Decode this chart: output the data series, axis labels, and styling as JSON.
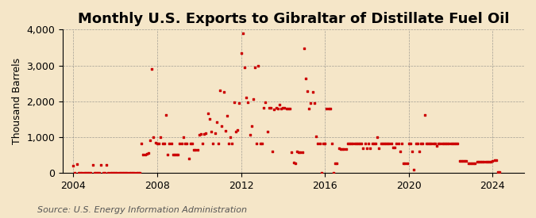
{
  "title": "Monthly U.S. Exports to Gibraltar of Distillate Fuel Oil",
  "ylabel": "Thousand Barrels",
  "source": "Source: U.S. Energy Information Administration",
  "xlim": [
    2003.5,
    2025.5
  ],
  "ylim": [
    0,
    4000
  ],
  "yticks": [
    0,
    1000,
    2000,
    3000,
    4000
  ],
  "ytick_labels": [
    "0",
    "1,000",
    "2,000",
    "3,000",
    "4,000"
  ],
  "xticks": [
    2004,
    2008,
    2012,
    2016,
    2020,
    2024
  ],
  "marker_color": "#cc0000",
  "marker_size": 4,
  "background_color": "#f5e6c8",
  "title_fontsize": 13,
  "axis_fontsize": 9,
  "source_fontsize": 8,
  "data_x": [
    2004.0,
    2004.08,
    2004.17,
    2004.25,
    2004.33,
    2004.42,
    2004.5,
    2004.58,
    2004.67,
    2004.75,
    2004.83,
    2004.92,
    2005.0,
    2005.08,
    2005.17,
    2005.25,
    2005.33,
    2005.42,
    2005.5,
    2005.58,
    2005.67,
    2005.75,
    2005.83,
    2005.92,
    2006.0,
    2006.08,
    2006.17,
    2006.25,
    2006.33,
    2006.42,
    2006.5,
    2006.58,
    2006.67,
    2006.75,
    2006.83,
    2006.92,
    2007.0,
    2007.08,
    2007.17,
    2007.25,
    2007.33,
    2007.42,
    2007.5,
    2007.58,
    2007.67,
    2007.75,
    2007.83,
    2007.92,
    2008.0,
    2008.08,
    2008.17,
    2008.25,
    2008.33,
    2008.42,
    2008.5,
    2008.58,
    2008.67,
    2008.75,
    2008.83,
    2008.92,
    2009.0,
    2009.08,
    2009.17,
    2009.25,
    2009.33,
    2009.42,
    2009.5,
    2009.58,
    2009.67,
    2009.75,
    2009.83,
    2009.92,
    2010.0,
    2010.08,
    2010.17,
    2010.25,
    2010.33,
    2010.42,
    2010.5,
    2010.58,
    2010.67,
    2010.75,
    2010.83,
    2010.92,
    2011.0,
    2011.08,
    2011.17,
    2011.25,
    2011.33,
    2011.42,
    2011.5,
    2011.58,
    2011.67,
    2011.75,
    2011.83,
    2011.92,
    2012.0,
    2012.08,
    2012.17,
    2012.25,
    2012.33,
    2012.42,
    2012.5,
    2012.58,
    2012.67,
    2012.75,
    2012.83,
    2012.92,
    2013.0,
    2013.08,
    2013.17,
    2013.25,
    2013.33,
    2013.42,
    2013.5,
    2013.58,
    2013.67,
    2013.75,
    2013.83,
    2013.92,
    2014.0,
    2014.08,
    2014.17,
    2014.25,
    2014.33,
    2014.42,
    2014.5,
    2014.58,
    2014.67,
    2014.75,
    2014.83,
    2014.92,
    2015.0,
    2015.08,
    2015.17,
    2015.25,
    2015.33,
    2015.42,
    2015.5,
    2015.58,
    2015.67,
    2015.75,
    2015.83,
    2015.92,
    2016.0,
    2016.08,
    2016.17,
    2016.25,
    2016.33,
    2016.42,
    2016.5,
    2016.58,
    2016.67,
    2016.75,
    2016.83,
    2016.92,
    2017.0,
    2017.08,
    2017.17,
    2017.25,
    2017.33,
    2017.42,
    2017.5,
    2017.58,
    2017.67,
    2017.75,
    2017.83,
    2017.92,
    2018.0,
    2018.08,
    2018.17,
    2018.25,
    2018.33,
    2018.42,
    2018.5,
    2018.58,
    2018.67,
    2018.75,
    2018.83,
    2018.92,
    2019.0,
    2019.08,
    2019.17,
    2019.25,
    2019.33,
    2019.42,
    2019.5,
    2019.58,
    2019.67,
    2019.75,
    2019.83,
    2019.92,
    2020.0,
    2020.08,
    2020.17,
    2020.25,
    2020.33,
    2020.42,
    2020.5,
    2020.58,
    2020.67,
    2020.75,
    2020.83,
    2020.92,
    2021.0,
    2021.08,
    2021.17,
    2021.25,
    2021.33,
    2021.42,
    2021.5,
    2021.58,
    2021.67,
    2021.75,
    2021.83,
    2021.92,
    2022.0,
    2022.08,
    2022.17,
    2022.25,
    2022.33,
    2022.42,
    2022.5,
    2022.58,
    2022.67,
    2022.75,
    2022.83,
    2022.92,
    2023.0,
    2023.08,
    2023.17,
    2023.25,
    2023.33,
    2023.42,
    2023.5,
    2023.58,
    2023.67,
    2023.75,
    2023.83,
    2023.92,
    2024.0,
    2024.08,
    2024.17,
    2024.25,
    2024.33
  ],
  "data_y": [
    200,
    0,
    240,
    0,
    0,
    0,
    0,
    0,
    0,
    0,
    0,
    230,
    0,
    0,
    0,
    0,
    230,
    0,
    0,
    220,
    0,
    0,
    0,
    0,
    0,
    0,
    0,
    0,
    0,
    0,
    0,
    0,
    0,
    0,
    0,
    0,
    0,
    0,
    0,
    820,
    500,
    500,
    540,
    550,
    900,
    2900,
    1000,
    840,
    820,
    820,
    1000,
    830,
    820,
    1620,
    500,
    820,
    830,
    500,
    500,
    500,
    500,
    820,
    820,
    1000,
    820,
    820,
    400,
    820,
    820,
    650,
    650,
    650,
    1070,
    1080,
    820,
    1080,
    1100,
    1650,
    1500,
    1150,
    820,
    1100,
    1420,
    820,
    2300,
    1300,
    2250,
    1180,
    1600,
    820,
    1000,
    820,
    1980,
    1150,
    1200,
    1940,
    3350,
    3900,
    2950,
    2100,
    1980,
    1070,
    1300,
    2050,
    2950,
    820,
    3000,
    820,
    820,
    1820,
    1980,
    1150,
    1820,
    1820,
    600,
    1780,
    1820,
    1800,
    1900,
    1800,
    1820,
    1820,
    1800,
    1800,
    1800,
    580,
    280,
    270,
    600,
    570,
    570,
    570,
    3480,
    2630,
    2270,
    1800,
    1950,
    2250,
    1950,
    1020,
    820,
    820,
    0,
    820,
    820,
    1800,
    1800,
    1800,
    820,
    0,
    270,
    270,
    680,
    660,
    660,
    660,
    660,
    820,
    820,
    820,
    820,
    820,
    820,
    820,
    820,
    820,
    680,
    820,
    680,
    820,
    680,
    820,
    820,
    820,
    1000,
    680,
    820,
    820,
    820,
    820,
    820,
    820,
    820,
    700,
    700,
    820,
    820,
    600,
    820,
    260,
    260,
    260,
    820,
    820,
    600,
    100,
    820,
    820,
    600,
    820,
    820,
    1620,
    820,
    820,
    820,
    820,
    820,
    820,
    750,
    820,
    820,
    820,
    820,
    820,
    820,
    820,
    820,
    820,
    820,
    820,
    820,
    330,
    330,
    330,
    330,
    330,
    260,
    260,
    260,
    260,
    260,
    310,
    310,
    310,
    310,
    310,
    310,
    310,
    310,
    310,
    330,
    350,
    350,
    30,
    30
  ]
}
